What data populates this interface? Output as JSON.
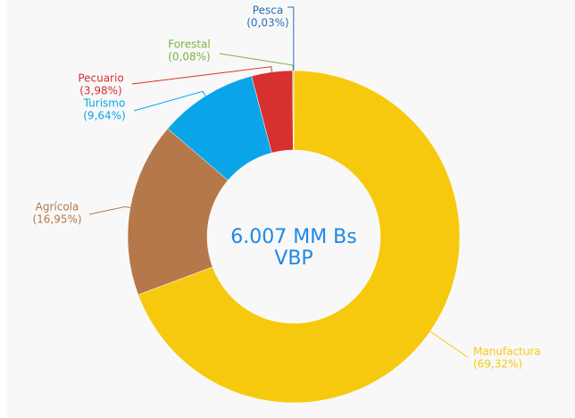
{
  "chart_data": {
    "type": "donut",
    "categories": [
      "Manufactura",
      "Agrícola",
      "Turismo",
      "Pecuario",
      "Forestal",
      "Pesca"
    ],
    "values": [
      69.32,
      16.95,
      9.64,
      3.98,
      0.08,
      0.03
    ],
    "value_labels": [
      "(69,32%)",
      "(16,95%)",
      "(9,64%)",
      "(3,98%)",
      "(0,08%)",
      "(0,03%)"
    ],
    "colors": [
      "#f7c90e",
      "#b5784a",
      "#0aa5e9",
      "#d7302f",
      "#7cb342",
      "#2a6ebb"
    ],
    "center_text": [
      "6.007 MM Bs",
      "VBP"
    ]
  }
}
